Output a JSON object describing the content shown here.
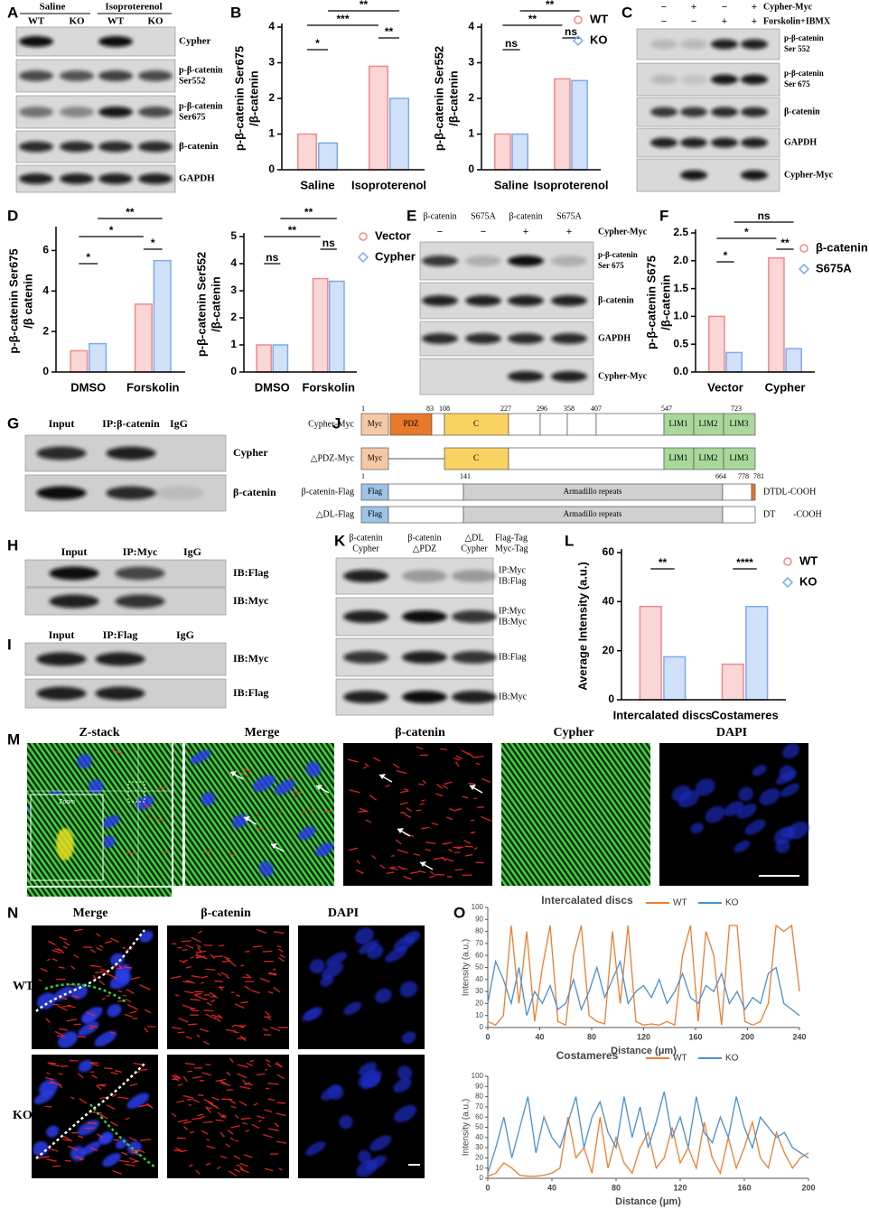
{
  "panel_letters": [
    "A",
    "B",
    "C",
    "D",
    "E",
    "F",
    "G",
    "H",
    "I",
    "J",
    "K",
    "L",
    "M",
    "N",
    "O"
  ],
  "panel_a": {
    "groups": [
      "Saline",
      "Isoproterenol"
    ],
    "lanes": [
      "WT",
      "KO",
      "WT",
      "KO"
    ],
    "rows": [
      [
        "Cypher"
      ],
      [
        "p-β-catenin",
        "Ser552"
      ],
      [
        "p-β-catenin",
        "Ser675"
      ],
      [
        "β-catenin"
      ],
      [
        "GAPDH"
      ]
    ]
  },
  "panel_c": {
    "treatments": [
      "Cypher-Myc",
      "Forskolin+IBMX"
    ],
    "signs": [
      [
        "−",
        "+",
        "−",
        "+"
      ],
      [
        "−",
        "−",
        "+",
        "+"
      ]
    ],
    "rows": [
      [
        "p-β-catenin",
        "Ser 552"
      ],
      [
        "p-β-catenin",
        "Ser 675"
      ],
      [
        "β-catenin"
      ],
      [
        "GAPDH"
      ],
      [
        "Cypher-Myc"
      ]
    ]
  },
  "panel_e": {
    "lanes": [
      "β-catenin",
      "S675A",
      "β-catenin",
      "S675A"
    ],
    "treatment": "Cypher-Myc",
    "signs": [
      "−",
      "−",
      "+",
      "+"
    ],
    "rows": [
      [
        "p-β-catenin",
        "Ser 675"
      ],
      [
        "β-catenin"
      ],
      [
        "GAPDH"
      ],
      [
        "Cypher-Myc"
      ]
    ]
  },
  "panel_g": {
    "lanes": [
      "Input",
      "IP:β-catenin",
      "IgG"
    ],
    "rows": [
      "Cypher",
      "β-catenin"
    ]
  },
  "panel_h": {
    "lanes": [
      "Input",
      "IP:Myc",
      "IgG"
    ],
    "rows": [
      "IB:Flag",
      "IB:Myc"
    ]
  },
  "panel_i": {
    "lanes": [
      "Input",
      "IP:Flag",
      "IgG"
    ],
    "rows": [
      "IB:Myc",
      "IB:Flag"
    ]
  },
  "panel_j": {
    "constructs": [
      {
        "name": "Cypher-Myc",
        "domains": [
          "Myc",
          "PDZ",
          "C",
          "LIM1",
          "LIM2",
          "LIM3"
        ],
        "positions": [
          1,
          83,
          108,
          227,
          296,
          358,
          407,
          547,
          723
        ]
      },
      {
        "name": "△PDZ-Myc",
        "domains": [
          "Myc",
          "C",
          "LIM1",
          "LIM2",
          "LIM3"
        ]
      },
      {
        "name": "β-catenin-Flag",
        "domains": [
          "Flag",
          "Armadillo repeats"
        ],
        "positions": [
          1,
          141,
          664,
          778,
          781
        ],
        "tail": [
          "DTDL-COOH"
        ]
      },
      {
        "name": "△DL-Flag",
        "domains": [
          "Flag",
          "Armadillo repeats"
        ],
        "tail": [
          "DT",
          "-COOH"
        ]
      }
    ]
  },
  "panel_k": {
    "lanes": [
      [
        "β-catenin",
        "Cypher"
      ],
      [
        "β-catenin",
        "△PDZ"
      ],
      [
        "△DL",
        "Cypher"
      ]
    ],
    "tags": [
      "Flag-Tag",
      "Myc-Tag"
    ],
    "rows": [
      [
        "IP:Myc",
        "IB:Flag"
      ],
      [
        "IP:Myc",
        "IB:Myc"
      ],
      [
        "IB:Flag"
      ],
      [
        "IB:Myc"
      ]
    ]
  },
  "panel_m": {
    "titles": [
      "Z-stack",
      "Merge",
      "β-catenin",
      "Cypher",
      "DAPI"
    ],
    "inset": "Zoom"
  },
  "panel_n": {
    "titles": [
      "Merge",
      "β-catenin",
      "DAPI"
    ],
    "rows": [
      "WT",
      "KO"
    ]
  },
  "chart_data": [
    {
      "type": "bar",
      "ylabel": [
        "p-β-catenin Ser675",
        "/β-catenin"
      ],
      "categories": [
        "Saline",
        "Isoproterenol"
      ],
      "series": [
        {
          "name": "WT",
          "color": "#f08a8a",
          "values": [
            1.0,
            2.9
          ]
        },
        {
          "name": "KO",
          "color": "#7aaaf0",
          "values": [
            0.75,
            2.0
          ]
        }
      ],
      "ylim": [
        0,
        4
      ],
      "yticks": [
        0,
        1,
        2,
        3,
        4
      ],
      "annotations": [
        "*",
        "***",
        "**",
        "**"
      ],
      "legend": false
    },
    {
      "type": "bar",
      "ylabel": [
        "p-β-catenin Ser552",
        "/β-catenin"
      ],
      "categories": [
        "Saline",
        "Isoproterenol"
      ],
      "series": [
        {
          "name": "WT",
          "color": "#f08a8a",
          "values": [
            1.0,
            2.55
          ]
        },
        {
          "name": "KO",
          "color": "#7aaaf0",
          "values": [
            1.0,
            2.5
          ]
        }
      ],
      "ylim": [
        0,
        4
      ],
      "yticks": [
        0,
        1,
        2,
        3,
        4
      ],
      "annotations": [
        "ns",
        "**",
        "ns",
        "**"
      ],
      "legend": true
    },
    {
      "type": "bar",
      "ylabel": [
        "p-β-catenin Ser675",
        "/β catenin"
      ],
      "categories": [
        "DMSO",
        "Forskolin"
      ],
      "series": [
        {
          "name": "Vector",
          "color": "#f08a8a",
          "values": [
            1.05,
            3.35
          ]
        },
        {
          "name": "Cypher",
          "color": "#7aaaf0",
          "values": [
            1.4,
            5.5
          ]
        }
      ],
      "ylim": [
        0,
        7
      ],
      "yticks": [
        0,
        2,
        4,
        6
      ],
      "annotations": [
        "*",
        "*",
        "*",
        "**"
      ],
      "legend": false
    },
    {
      "type": "bar",
      "ylabel": [
        "p-β-catenin Ser552",
        "/β-catenin"
      ],
      "categories": [
        "DMSO",
        "Forskolin"
      ],
      "series": [
        {
          "name": "Vector",
          "color": "#f08a8a",
          "values": [
            1.0,
            3.45
          ]
        },
        {
          "name": "Cypher",
          "color": "#7aaaf0",
          "values": [
            1.0,
            3.35
          ]
        }
      ],
      "ylim": [
        0,
        5
      ],
      "yticks": [
        0,
        1,
        2,
        3,
        4,
        5
      ],
      "annotations": [
        "ns",
        "**",
        "ns",
        "**"
      ],
      "legend": true
    },
    {
      "type": "bar",
      "ylabel": [
        "p-β-catenin S675",
        "/β-catenin"
      ],
      "categories": [
        "Vector",
        "Cypher"
      ],
      "series": [
        {
          "name": "β-catenin",
          "color": "#f08a8a",
          "values": [
            1.0,
            2.05
          ]
        },
        {
          "name": "S675A",
          "color": "#7aaaf0",
          "values": [
            0.35,
            0.42
          ]
        }
      ],
      "ylim": [
        0,
        2.5
      ],
      "yticks": [
        {
          "value": 0,
          "label": "0.0"
        },
        0.5,
        {
          "value": 1,
          "label": "1.0"
        },
        1.5,
        {
          "value": 2,
          "label": "2.0"
        },
        2.5
      ],
      "annotations": [
        "*",
        "*",
        "**",
        "ns"
      ],
      "legend": true
    },
    {
      "type": "bar",
      "ylabel": [
        "Average Intensity (a.u.)"
      ],
      "categories": [
        "Intercalated discs",
        "Costameres"
      ],
      "series": [
        {
          "name": "WT",
          "color": "#f08a8a",
          "values": [
            38,
            14.5
          ]
        },
        {
          "name": "KO",
          "color": "#7aaaf0",
          "values": [
            17.5,
            38
          ]
        }
      ],
      "ylim": [
        0,
        60
      ],
      "yticks": [
        0,
        20,
        40,
        60
      ],
      "annotations": [
        "**",
        "****"
      ],
      "legend": true
    },
    {
      "type": "line",
      "title": "Intercalated discs",
      "xlabel": "Distance (μm)",
      "ylabel": "Intensity (a.u.)",
      "x": [
        0,
        6,
        12,
        18,
        24,
        30,
        36,
        42,
        48,
        54,
        60,
        66,
        72,
        78,
        84,
        90,
        96,
        102,
        108,
        114,
        120,
        126,
        132,
        138,
        144,
        150,
        156,
        162,
        168,
        174,
        180,
        186,
        192,
        198,
        204,
        210,
        216,
        222,
        228,
        234,
        240
      ],
      "series": [
        {
          "name": "WT",
          "color": "#ed7d31",
          "values": [
            5,
            2,
            10,
            85,
            20,
            80,
            5,
            50,
            85,
            5,
            2,
            60,
            85,
            10,
            5,
            3,
            80,
            20,
            85,
            5,
            2,
            3,
            2,
            5,
            2,
            60,
            85,
            5,
            80,
            60,
            2,
            85,
            85,
            5,
            2,
            5,
            20,
            85,
            80,
            85,
            30
          ]
        },
        {
          "name": "KO",
          "color": "#4a8fd0",
          "values": [
            20,
            55,
            40,
            20,
            50,
            10,
            30,
            20,
            35,
            15,
            20,
            40,
            15,
            30,
            50,
            25,
            40,
            55,
            20,
            30,
            35,
            25,
            40,
            20,
            30,
            45,
            25,
            20,
            35,
            30,
            45,
            20,
            30,
            15,
            25,
            20,
            45,
            50,
            20,
            15,
            10
          ]
        }
      ],
      "xlim": [
        0,
        240
      ],
      "xticks": [
        0,
        40,
        80,
        120,
        160,
        200,
        240
      ],
      "ylim": [
        0,
        100
      ],
      "yticks": [
        0,
        10,
        20,
        30,
        40,
        50,
        60,
        70,
        80,
        90,
        100
      ]
    },
    {
      "type": "line",
      "title": "Costameres",
      "xlabel": "Distance (μm)",
      "ylabel": "Intensity (a.u.)",
      "x": [
        0,
        5,
        10,
        15,
        20,
        25,
        30,
        35,
        40,
        45,
        50,
        55,
        60,
        65,
        70,
        75,
        80,
        85,
        90,
        95,
        100,
        105,
        110,
        115,
        120,
        125,
        130,
        135,
        140,
        145,
        150,
        155,
        160,
        165,
        170,
        175,
        180,
        185,
        190,
        195,
        200
      ],
      "series": [
        {
          "name": "WT",
          "color": "#ed7d31",
          "values": [
            2,
            5,
            15,
            10,
            3,
            2,
            2,
            3,
            5,
            10,
            60,
            20,
            30,
            5,
            60,
            10,
            40,
            15,
            5,
            30,
            45,
            10,
            20,
            50,
            15,
            30,
            10,
            55,
            20,
            5,
            40,
            10,
            30,
            55,
            20,
            10,
            45,
            25,
            10,
            20,
            25
          ]
        },
        {
          "name": "KO",
          "color": "#4a8fd0",
          "values": [
            5,
            30,
            60,
            20,
            50,
            80,
            25,
            60,
            40,
            30,
            55,
            80,
            30,
            60,
            75,
            45,
            30,
            80,
            40,
            70,
            30,
            55,
            85,
            40,
            60,
            30,
            80,
            45,
            35,
            60,
            40,
            80,
            50,
            30,
            60,
            50,
            40,
            45,
            30,
            25,
            20
          ]
        }
      ],
      "xlim": [
        0,
        200
      ],
      "xticks": [
        0,
        40,
        80,
        120,
        160,
        200
      ],
      "ylim": [
        0,
        100
      ],
      "yticks": [
        0,
        10,
        20,
        30,
        40,
        50,
        60,
        70,
        80,
        90,
        100
      ]
    }
  ]
}
